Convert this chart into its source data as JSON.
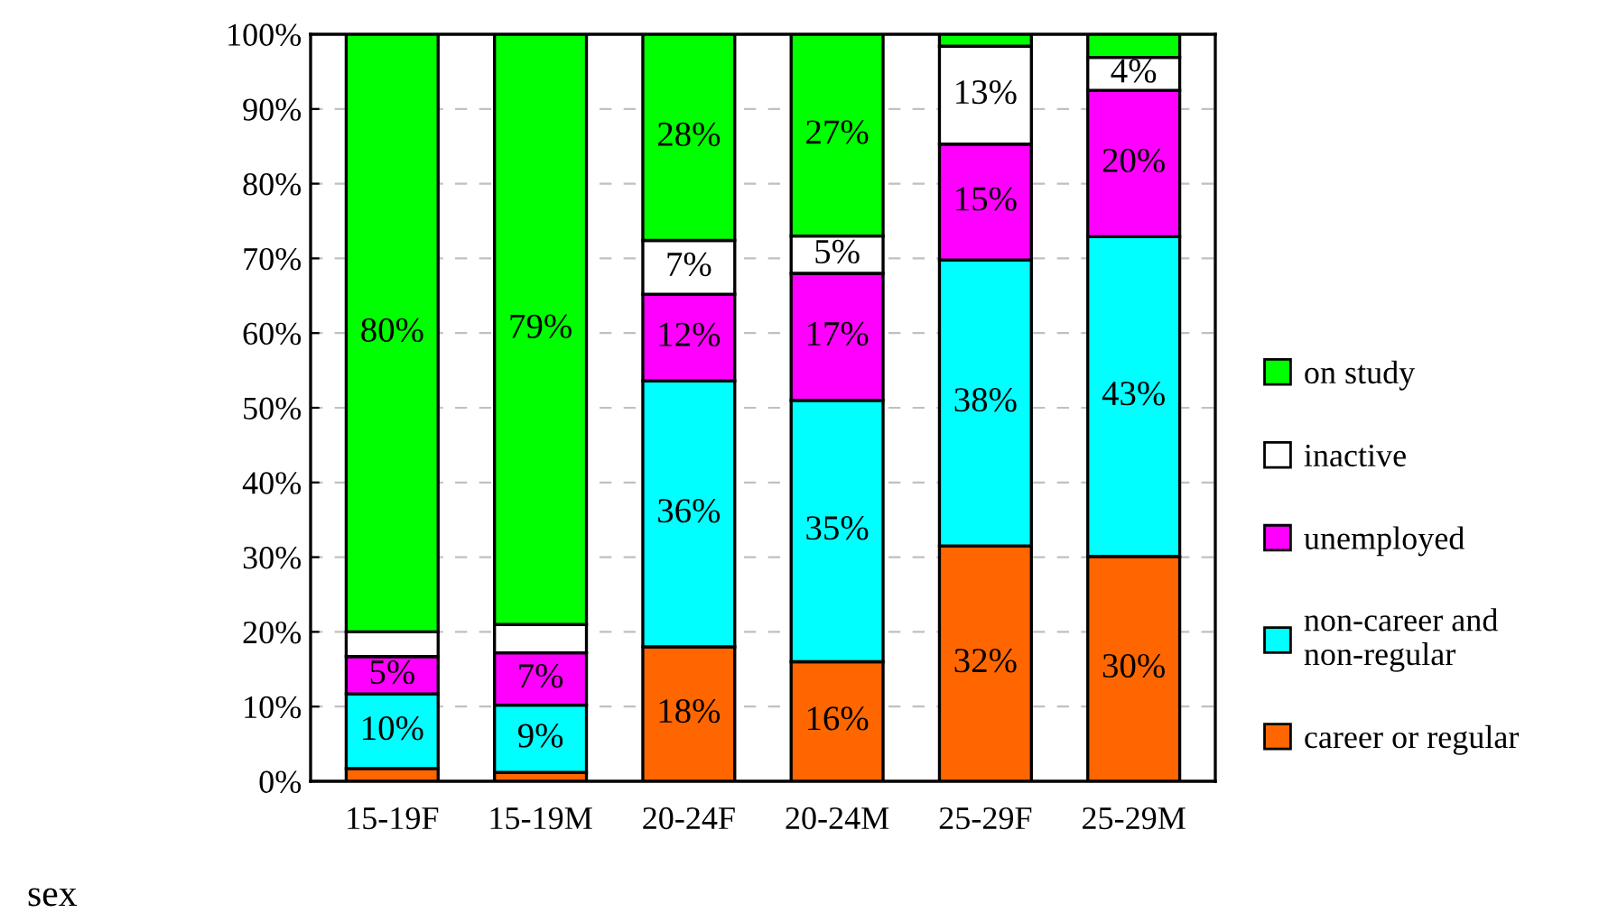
{
  "chart_data": {
    "type": "bar",
    "stacked": true,
    "xlabel": "sex",
    "categories": [
      "15-19F",
      "15-19M",
      "20-24F",
      "20-24M",
      "25-29F",
      "25-29M"
    ],
    "series": [
      {
        "name": "career or regular",
        "color": "#ff6600",
        "values": [
          1.7,
          1.2,
          18,
          16,
          31.5,
          30.1
        ],
        "value_labels": [
          null,
          null,
          "18%",
          "16%",
          "32%",
          "30%"
        ]
      },
      {
        "name": "non-career and non-regular",
        "color": "#00ffff",
        "values": [
          10,
          9,
          35.6,
          35,
          38.3,
          42.8
        ],
        "value_labels": [
          "10%",
          "9%",
          "36%",
          "35%",
          "38%",
          "43%"
        ]
      },
      {
        "name": "unemployed",
        "color": "#ff00ff",
        "values": [
          5,
          7,
          11.6,
          17,
          15.5,
          19.6
        ],
        "value_labels": [
          "5%",
          "7%",
          "12%",
          "17%",
          "15%",
          "20%"
        ]
      },
      {
        "name": "inactive",
        "color": "#ffffff",
        "values": [
          3.3,
          3.8,
          7.2,
          5,
          13.1,
          4.4
        ],
        "value_labels": [
          null,
          null,
          "7%",
          "5%",
          "13%",
          "4%"
        ]
      },
      {
        "name": "on study",
        "color": "#00ff00",
        "values": [
          80,
          79,
          27.6,
          27,
          1.6,
          3.1
        ],
        "value_labels": [
          "80%",
          "79%",
          "28%",
          "27%",
          null,
          null
        ]
      }
    ],
    "ylim": [
      0,
      100
    ],
    "yticks": [
      {
        "value": 0,
        "label": "0%"
      },
      {
        "value": 10,
        "label": "10%"
      },
      {
        "value": 20,
        "label": "20%"
      },
      {
        "value": 30,
        "label": "30%"
      },
      {
        "value": 40,
        "label": "40%"
      },
      {
        "value": 50,
        "label": "50%"
      },
      {
        "value": 60,
        "label": "60%"
      },
      {
        "value": 70,
        "label": "70%"
      },
      {
        "value": 80,
        "label": "80%"
      },
      {
        "value": 90,
        "label": "90%"
      },
      {
        "value": 100,
        "label": "100%"
      }
    ],
    "grid": "y",
    "legend": "right"
  }
}
